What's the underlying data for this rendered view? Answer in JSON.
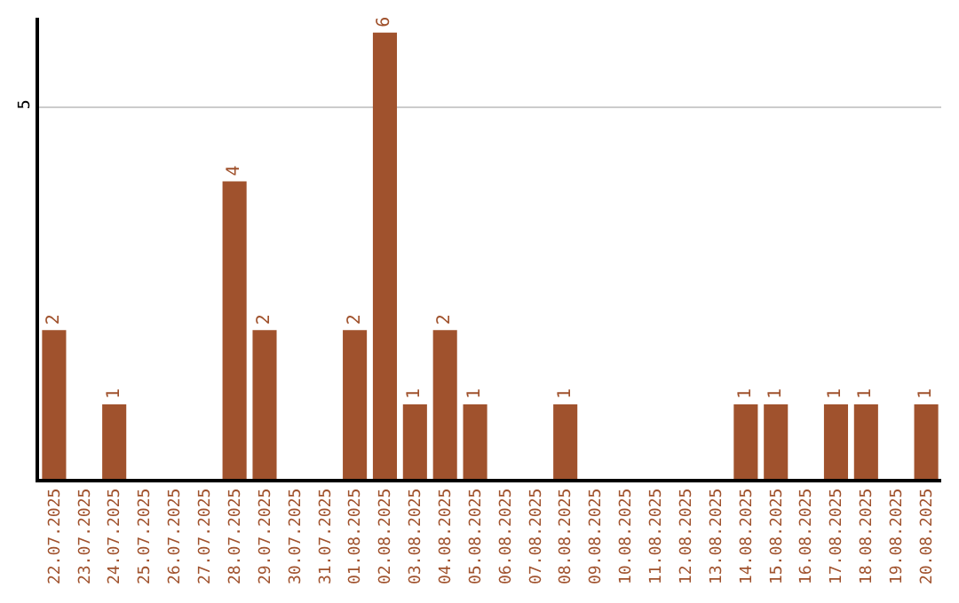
{
  "chart_data": {
    "type": "bar",
    "categories": [
      "22.07.2025",
      "23.07.2025",
      "24.07.2025",
      "25.07.2025",
      "26.07.2025",
      "27.07.2025",
      "28.07.2025",
      "29.07.2025",
      "30.07.2025",
      "31.07.2025",
      "01.08.2025",
      "02.08.2025",
      "03.08.2025",
      "04.08.2025",
      "05.08.2025",
      "06.08.2025",
      "07.08.2025",
      "08.08.2025",
      "09.08.2025",
      "10.08.2025",
      "11.08.2025",
      "12.08.2025",
      "13.08.2025",
      "14.08.2025",
      "15.08.2025",
      "16.08.2025",
      "17.08.2025",
      "18.08.2025",
      "19.08.2025",
      "20.08.2025"
    ],
    "values": [
      2,
      0,
      1,
      0,
      0,
      0,
      4,
      2,
      0,
      0,
      2,
      6,
      1,
      2,
      1,
      0,
      0,
      1,
      0,
      0,
      0,
      0,
      0,
      1,
      1,
      0,
      1,
      1,
      0,
      1
    ],
    "value_labels": [
      "2",
      null,
      "1",
      null,
      null,
      null,
      "4",
      "2",
      null,
      null,
      "2",
      "6",
      "1",
      "2",
      "1",
      null,
      null,
      "1",
      null,
      null,
      null,
      null,
      null,
      "1",
      "1",
      null,
      "1",
      "1",
      null,
      "1"
    ],
    "color": "#a0522d",
    "ylim": [
      0,
      6.2
    ],
    "yticks": [
      5
    ],
    "grid": "y"
  }
}
